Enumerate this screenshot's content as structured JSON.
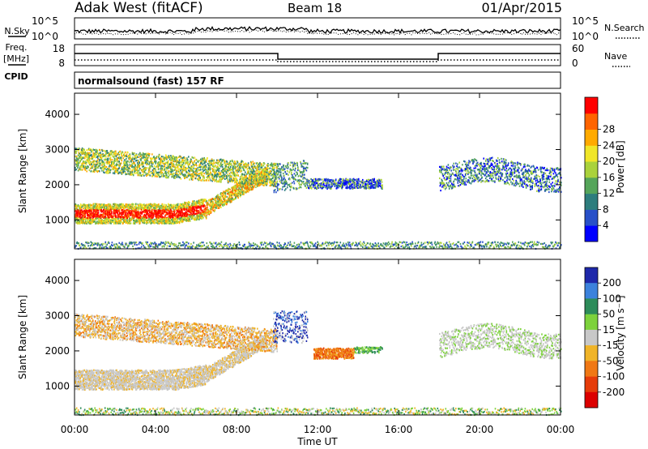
{
  "header": {
    "station": "Adak West (fitACF)",
    "beam": "Beam 18",
    "date": "01/Apr/2015"
  },
  "noise_panel": {
    "left_label": "N.Sky",
    "right_label": "N.Search",
    "ticks": [
      "10^5",
      "10^0"
    ]
  },
  "freq_panel": {
    "left_label_line1": "Freq.",
    "left_label_line2": "[MHz]",
    "left_ticks": [
      "18",
      "8"
    ],
    "right_label": "Nave",
    "right_ticks": [
      "60",
      "0"
    ]
  },
  "cpid": {
    "label": "CPID",
    "program": "normalsound (fast) 157 RF"
  },
  "chart_data": [
    {
      "type": "heatmap",
      "name": "power-panel",
      "ylabel": "Slant Range [km]",
      "yticks": [
        1000,
        2000,
        3000,
        4000
      ],
      "ylim": [
        180,
        4600
      ],
      "xlim": [
        0,
        24
      ],
      "colorbar": {
        "label": "Power [dB]",
        "ticks": [
          "4",
          "8",
          "12",
          "16",
          "20",
          "24",
          "28"
        ],
        "colors": [
          "#0000ff",
          "#2850c8",
          "#2d7d7d",
          "#55a55a",
          "#aad23c",
          "#f0e628",
          "#ffaa00",
          "#ff6400",
          "#ff0000"
        ]
      },
      "features": [
        {
          "region": "near-range band",
          "x": [
            0.0,
            7.0
          ],
          "y": [
            950,
            1500
          ],
          "level": "20-30 dB"
        },
        {
          "region": "band rising to meet far band",
          "x": [
            6.0,
            9.5
          ],
          "y": [
            1300,
            2300
          ],
          "level": "12-20 dB"
        },
        {
          "region": "far-range band",
          "x": [
            0.0,
            10.0
          ],
          "y": [
            2200,
            3000
          ],
          "level": "8-20 dB"
        },
        {
          "region": "post-10UT echoes",
          "x": [
            10.0,
            15.2
          ],
          "y": [
            1800,
            2600
          ],
          "level": "4-16 dB"
        },
        {
          "region": "evening echoes",
          "x": [
            18.0,
            24.0
          ],
          "y": [
            1900,
            2800
          ],
          "level": "4-16 dB"
        },
        {
          "region": "sparse near-range scatter",
          "x": [
            0.0,
            24.0
          ],
          "y": [
            180,
            400
          ],
          "level": "4-12 dB"
        }
      ]
    },
    {
      "type": "heatmap",
      "name": "velocity-panel",
      "ylabel": "Slant Range [km]",
      "yticks": [
        1000,
        2000,
        3000,
        4000
      ],
      "ylim": [
        180,
        4600
      ],
      "xlim": [
        0,
        24
      ],
      "xlabel": "Time UT",
      "xticks": [
        "00:00",
        "04:00",
        "08:00",
        "12:00",
        "16:00",
        "20:00",
        "00:00"
      ],
      "colorbar": {
        "label": "Velocity [m s⁻¹]",
        "ticks": [
          "200",
          "100",
          "50",
          "15",
          "-15",
          "-50",
          "-100",
          "-200"
        ],
        "colors": [
          "#1e28aa",
          "#3c82dc",
          "#2d8c5a",
          "#7dd23c",
          "#c8c8c8",
          "#f0b428",
          "#f07814",
          "#e63c0a",
          "#dc0000"
        ]
      },
      "features": [
        {
          "region": "near-range band",
          "x": [
            0.0,
            7.0
          ],
          "y": [
            950,
            1500
          ],
          "velocity": "-15 to 15 (ground scatter)"
        },
        {
          "region": "far-range band",
          "x": [
            0.0,
            10.0
          ],
          "y": [
            2200,
            3000
          ],
          "velocity": "-15 to 15, some -50"
        },
        {
          "region": "12-14 UT patch",
          "x": [
            11.8,
            13.8
          ],
          "y": [
            1800,
            2100
          ],
          "velocity": "-50 to -100"
        },
        {
          "region": "10-11 UT echoes",
          "x": [
            9.8,
            11.5
          ],
          "y": [
            2400,
            3200
          ],
          "velocity": "100 to 200"
        },
        {
          "region": "evening echoes",
          "x": [
            18.0,
            24.0
          ],
          "y": [
            1900,
            2800
          ],
          "velocity": "-15 to 15"
        }
      ]
    }
  ]
}
